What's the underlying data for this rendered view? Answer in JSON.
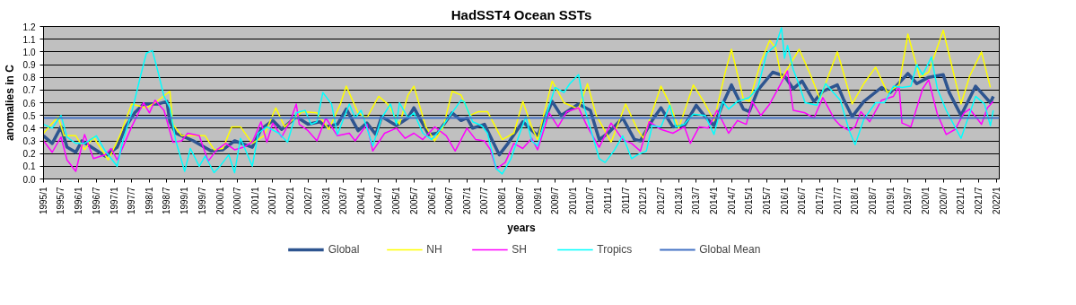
{
  "chart_data": {
    "type": "line",
    "title": "HadSST4 Ocean SSTs",
    "xlabel": "years",
    "ylabel": "anomalies in C",
    "xlim": [
      "1995-01",
      "2022-02"
    ],
    "ylim": [
      0,
      1.2
    ],
    "yticks": [
      {
        "value": 0,
        "label": "0.0"
      },
      0.1,
      0.2,
      0.3,
      0.4,
      0.5,
      0.6,
      0.7,
      0.8,
      0.9,
      {
        "value": 1,
        "label": "1.0"
      },
      1.1,
      1.2
    ],
    "xticks": [
      {
        "value": "1995-01",
        "label": "1995/1"
      },
      {
        "value": "1995-07",
        "label": "1995/7"
      },
      {
        "value": "1996-01",
        "label": "1996/1"
      },
      {
        "value": "1996-07",
        "label": "1996/7"
      },
      {
        "value": "1997-01",
        "label": "1997/1"
      },
      {
        "value": "1997-07",
        "label": "1997/7"
      },
      {
        "value": "1998-01",
        "label": "1998/1"
      },
      {
        "value": "1998-07",
        "label": "1998/7"
      },
      {
        "value": "1999-01",
        "label": "1999/1"
      },
      {
        "value": "1999-07",
        "label": "1999/7"
      },
      {
        "value": "2000-01",
        "label": "2000/1"
      },
      {
        "value": "2000-07",
        "label": "2000/7"
      },
      {
        "value": "2001-01",
        "label": "2001/1"
      },
      {
        "value": "2001-07",
        "label": "2001/7"
      },
      {
        "value": "2002-01",
        "label": "2002/1"
      },
      {
        "value": "2002-07",
        "label": "2002/7"
      },
      {
        "value": "2003-01",
        "label": "2003/1"
      },
      {
        "value": "2003-07",
        "label": "2003/7"
      },
      {
        "value": "2004-01",
        "label": "2004/1"
      },
      {
        "value": "2004-07",
        "label": "2004/7"
      },
      {
        "value": "2005-01",
        "label": "2005/1"
      },
      {
        "value": "2005-07",
        "label": "2005/7"
      },
      {
        "value": "2006-01",
        "label": "2006/1"
      },
      {
        "value": "2006-07",
        "label": "2006/7"
      },
      {
        "value": "2007-01",
        "label": "2007/1"
      },
      {
        "value": "2007-07",
        "label": "2007/7"
      },
      {
        "value": "2008-01",
        "label": "2008/1"
      },
      {
        "value": "2008-07",
        "label": "2008/7"
      },
      {
        "value": "2009-01",
        "label": "2009/1"
      },
      {
        "value": "2009-07",
        "label": "2009/7"
      },
      {
        "value": "2010-01",
        "label": "2010/1"
      },
      {
        "value": "2010-07",
        "label": "2010/7"
      },
      {
        "value": "2011-01",
        "label": "2011/1"
      },
      {
        "value": "2011-07",
        "label": "2011/7"
      },
      {
        "value": "2012-01",
        "label": "2012/1"
      },
      {
        "value": "2012-07",
        "label": "2012/7"
      },
      {
        "value": "2013-01",
        "label": "2013/1"
      },
      {
        "value": "2013-07",
        "label": "2013/7"
      },
      {
        "value": "2014-01",
        "label": "2014/1"
      },
      {
        "value": "2014-07",
        "label": "2014/7"
      },
      {
        "value": "2015-01",
        "label": "2015/1"
      },
      {
        "value": "2015-07",
        "label": "2015/7"
      },
      {
        "value": "2016-01",
        "label": "2016/1"
      },
      {
        "value": "2016-07",
        "label": "2016/7"
      },
      {
        "value": "2017-01",
        "label": "2017/1"
      },
      {
        "value": "2017-07",
        "label": "2017/7"
      },
      {
        "value": "2018-01",
        "label": "2018/1"
      },
      {
        "value": "2018-07",
        "label": "2018/7"
      },
      {
        "value": "2019-01",
        "label": "2019/1"
      },
      {
        "value": "2019-07",
        "label": "2019/7"
      },
      {
        "value": "2020-01",
        "label": "2020/1"
      },
      {
        "value": "2020-07",
        "label": "2020/7"
      },
      {
        "value": "2021-01",
        "label": "2021/1"
      },
      {
        "value": "2021-07",
        "label": "2021/7"
      },
      {
        "value": "2022-01",
        "label": "2022/1"
      }
    ],
    "grid": "y",
    "legend": "bottom",
    "series": [
      {
        "name": "Global",
        "color": "#2e5590",
        "x": [
          "1995-01",
          "1995-04",
          "1995-07",
          "1995-09",
          "1995-12",
          "1996-02",
          "1996-06",
          "1996-10",
          "1997-02",
          "1997-05",
          "1997-08",
          "1997-11",
          "1998-04",
          "1998-07",
          "1998-08",
          "1998-10",
          "1998-12",
          "1999-04",
          "1999-10",
          "2000-02",
          "2000-06",
          "2000-12",
          "2001-03",
          "2001-07",
          "2001-10",
          "2001-12",
          "2002-03",
          "2002-07",
          "2002-11",
          "2003-01",
          "2003-05",
          "2003-08",
          "2003-12",
          "2004-03",
          "2004-06",
          "2004-08",
          "2005-01",
          "2005-05",
          "2005-07",
          "2005-12",
          "2006-03",
          "2006-08",
          "2006-11",
          "2007-01",
          "2007-03",
          "2007-07",
          "2007-12",
          "2008-03",
          "2008-08",
          "2009-01",
          "2009-06",
          "2009-09",
          "2010-03",
          "2010-07",
          "2010-10",
          "2011-01",
          "2011-06",
          "2011-10",
          "2011-12",
          "2012-04",
          "2012-07",
          "2012-11",
          "2013-03",
          "2013-07",
          "2013-10",
          "2014-01",
          "2014-04",
          "2014-07",
          "2014-11",
          "2015-01",
          "2015-04",
          "2015-09",
          "2016-01",
          "2016-04",
          "2016-07",
          "2016-11",
          "2017-02",
          "2017-07",
          "2017-09",
          "2017-12",
          "2018-04",
          "2018-10",
          "2019-01",
          "2019-07",
          "2019-10",
          "2020-02",
          "2020-07",
          "2020-09",
          "2021-01",
          "2021-06",
          "2021-11",
          "2021-12"
        ],
        "values": [
          0.34,
          0.28,
          0.41,
          0.25,
          0.21,
          0.3,
          0.24,
          0.18,
          0.25,
          0.41,
          0.52,
          0.59,
          0.59,
          0.61,
          0.45,
          0.36,
          0.34,
          0.3,
          0.22,
          0.23,
          0.3,
          0.25,
          0.39,
          0.46,
          0.39,
          0.43,
          0.49,
          0.43,
          0.45,
          0.41,
          0.43,
          0.55,
          0.38,
          0.44,
          0.35,
          0.49,
          0.42,
          0.48,
          0.56,
          0.35,
          0.36,
          0.52,
          0.46,
          0.48,
          0.4,
          0.43,
          0.19,
          0.28,
          0.45,
          0.34,
          0.61,
          0.5,
          0.59,
          0.54,
          0.31,
          0.36,
          0.48,
          0.31,
          0.3,
          0.46,
          0.56,
          0.41,
          0.42,
          0.58,
          0.49,
          0.42,
          0.59,
          0.74,
          0.55,
          0.53,
          0.7,
          0.84,
          0.81,
          0.71,
          0.77,
          0.61,
          0.69,
          0.74,
          0.63,
          0.49,
          0.61,
          0.72,
          0.68,
          0.83,
          0.75,
          0.8,
          0.82,
          0.68,
          0.5,
          0.73,
          0.6,
          0.65
        ]
      },
      {
        "name": "NH",
        "color": "#ffff00",
        "x": [
          "1995-01",
          "1995-06",
          "1995-08",
          "1995-12",
          "1996-03",
          "1996-06",
          "1996-11",
          "1997-03",
          "1997-07",
          "1997-12",
          "1998-03",
          "1998-08",
          "1998-09",
          "1998-12",
          "1999-04",
          "1999-08",
          "1999-11",
          "2000-02",
          "2000-05",
          "2000-08",
          "2000-12",
          "2001-04",
          "2001-08",
          "2001-11",
          "2002-05",
          "2002-10",
          "2003-02",
          "2003-06",
          "2003-08",
          "2003-12",
          "2004-03",
          "2004-07",
          "2004-10",
          "2005-02",
          "2005-05",
          "2005-07",
          "2005-11",
          "2006-02",
          "2006-05",
          "2006-08",
          "2006-11",
          "2007-02",
          "2007-05",
          "2007-08",
          "2008-01",
          "2008-05",
          "2008-08",
          "2008-11",
          "2009-01",
          "2009-06",
          "2009-10",
          "2010-03",
          "2010-06",
          "2010-09",
          "2011-02",
          "2011-07",
          "2011-11",
          "2012-01",
          "2012-07",
          "2012-10",
          "2013-01",
          "2013-06",
          "2013-10",
          "2014-01",
          "2014-05",
          "2014-07",
          "2014-11",
          "2015-01",
          "2015-05",
          "2015-08",
          "2015-10",
          "2015-12",
          "2016-06",
          "2016-10",
          "2017-01",
          "2017-07",
          "2017-09",
          "2017-12",
          "2018-04",
          "2018-08",
          "2018-12",
          "2019-04",
          "2019-07",
          "2019-11",
          "2020-02",
          "2020-07",
          "2021-01",
          "2021-04",
          "2021-08",
          "2021-11"
        ],
        "values": [
          0.36,
          0.49,
          0.34,
          0.34,
          0.23,
          0.33,
          0.15,
          0.34,
          0.59,
          0.56,
          0.6,
          0.69,
          0.43,
          0.34,
          0.34,
          0.34,
          0.23,
          0.24,
          0.41,
          0.41,
          0.28,
          0.34,
          0.56,
          0.41,
          0.53,
          0.52,
          0.39,
          0.59,
          0.73,
          0.52,
          0.48,
          0.65,
          0.59,
          0.43,
          0.66,
          0.73,
          0.41,
          0.3,
          0.41,
          0.69,
          0.66,
          0.5,
          0.53,
          0.53,
          0.31,
          0.36,
          0.61,
          0.41,
          0.31,
          0.77,
          0.6,
          0.55,
          0.75,
          0.5,
          0.29,
          0.59,
          0.39,
          0.32,
          0.73,
          0.59,
          0.4,
          0.74,
          0.59,
          0.46,
          0.85,
          1.02,
          0.63,
          0.61,
          0.92,
          1.09,
          1.03,
          0.79,
          1.02,
          0.81,
          0.63,
          1.0,
          0.84,
          0.59,
          0.75,
          0.88,
          0.68,
          0.74,
          1.14,
          0.8,
          0.84,
          1.17,
          0.59,
          0.81,
          1.0,
          0.72
        ]
      },
      {
        "name": "SH",
        "color": "#ff00ff",
        "x": [
          "1995-01",
          "1995-04",
          "1995-07",
          "1995-09",
          "1995-12",
          "1996-03",
          "1996-06",
          "1996-10",
          "1996-12",
          "1997-02",
          "1997-04",
          "1997-07",
          "1997-11",
          "1998-01",
          "1998-03",
          "1998-06",
          "1998-09",
          "1998-12",
          "1999-02",
          "1999-06",
          "1999-09",
          "1999-12",
          "2000-03",
          "2000-06",
          "2000-09",
          "2000-12",
          "2001-03",
          "2001-05",
          "2001-07",
          "2001-10",
          "2002-01",
          "2002-03",
          "2002-04",
          "2002-07",
          "2002-10",
          "2003-01",
          "2003-05",
          "2003-09",
          "2003-11",
          "2004-03",
          "2004-05",
          "2004-09",
          "2005-01",
          "2005-04",
          "2005-07",
          "2005-10",
          "2006-02",
          "2006-06",
          "2006-09",
          "2007-01",
          "2007-04",
          "2007-07",
          "2007-09",
          "2007-11",
          "2008-02",
          "2008-05",
          "2008-08",
          "2008-11",
          "2009-01",
          "2009-05",
          "2009-08",
          "2009-11",
          "2010-03",
          "2010-06",
          "2010-10",
          "2011-02",
          "2011-06",
          "2011-09",
          "2011-12",
          "2012-03",
          "2012-07",
          "2012-11",
          "2013-03",
          "2013-05",
          "2013-08",
          "2013-11",
          "2014-02",
          "2014-06",
          "2014-09",
          "2014-12",
          "2015-02",
          "2015-05",
          "2015-08",
          "2015-12",
          "2016-02",
          "2016-04",
          "2016-08",
          "2016-11",
          "2017-02",
          "2017-06",
          "2017-08",
          "2017-11",
          "2018-01",
          "2018-03",
          "2018-06",
          "2018-10",
          "2019-02",
          "2019-04",
          "2019-05",
          "2019-08",
          "2019-12",
          "2020-02",
          "2020-05",
          "2020-08",
          "2020-11",
          "2021-02",
          "2021-04",
          "2021-08",
          "2021-10",
          "2021-12"
        ],
        "values": [
          0.3,
          0.21,
          0.33,
          0.15,
          0.06,
          0.35,
          0.16,
          0.19,
          0.24,
          0.15,
          0.25,
          0.41,
          0.6,
          0.52,
          0.62,
          0.54,
          0.29,
          0.3,
          0.36,
          0.34,
          0.14,
          0.23,
          0.28,
          0.23,
          0.25,
          0.29,
          0.45,
          0.29,
          0.44,
          0.33,
          0.46,
          0.59,
          0.43,
          0.38,
          0.3,
          0.48,
          0.34,
          0.36,
          0.3,
          0.43,
          0.22,
          0.36,
          0.4,
          0.32,
          0.36,
          0.31,
          0.41,
          0.34,
          0.22,
          0.4,
          0.31,
          0.3,
          0.23,
          0.08,
          0.13,
          0.28,
          0.24,
          0.32,
          0.23,
          0.52,
          0.41,
          0.53,
          0.56,
          0.41,
          0.25,
          0.44,
          0.31,
          0.28,
          0.22,
          0.45,
          0.39,
          0.36,
          0.41,
          0.28,
          0.41,
          0.4,
          0.54,
          0.36,
          0.46,
          0.43,
          0.61,
          0.5,
          0.59,
          0.76,
          0.85,
          0.54,
          0.52,
          0.48,
          0.64,
          0.47,
          0.42,
          0.38,
          0.41,
          0.53,
          0.45,
          0.62,
          0.65,
          0.73,
          0.44,
          0.41,
          0.71,
          0.78,
          0.51,
          0.35,
          0.39,
          0.52,
          0.55,
          0.43,
          0.56,
          0.61
        ]
      },
      {
        "name": "Tropics",
        "color": "#00ffff",
        "x": [
          "1995-01",
          "1995-04",
          "1995-07",
          "1995-09",
          "1995-12",
          "1996-03",
          "1996-07",
          "1996-10",
          "1997-02",
          "1997-04",
          "1997-07",
          "1997-10",
          "1997-12",
          "1998-02",
          "1998-04",
          "1998-06",
          "1998-08",
          "1998-10",
          "1999-01",
          "1999-03",
          "1999-06",
          "1999-08",
          "1999-11",
          "2000-01",
          "2000-04",
          "2000-06",
          "2000-08",
          "2000-12",
          "2001-02",
          "2001-05",
          "2001-09",
          "2001-12",
          "2002-03",
          "2002-06",
          "2002-08",
          "2002-10",
          "2002-12",
          "2003-03",
          "2003-05",
          "2003-09",
          "2003-11",
          "2004-01",
          "2004-05",
          "2004-08",
          "2004-11",
          "2005-01",
          "2005-02",
          "2005-05",
          "2005-07",
          "2005-10",
          "2006-01",
          "2006-04",
          "2006-07",
          "2006-11",
          "2006-12",
          "2007-03",
          "2007-06",
          "2007-08",
          "2007-11",
          "2008-01",
          "2008-04",
          "2008-07",
          "2008-09",
          "2008-11",
          "2009-01",
          "2009-04",
          "2009-07",
          "2009-10",
          "2009-12",
          "2010-03",
          "2010-05",
          "2010-07",
          "2010-10",
          "2010-12",
          "2011-03",
          "2011-06",
          "2011-09",
          "2011-11",
          "2012-02",
          "2012-04",
          "2012-07",
          "2012-10",
          "2012-12",
          "2013-03",
          "2013-06",
          "2013-10",
          "2014-01",
          "2014-04",
          "2014-06",
          "2014-09",
          "2015-01",
          "2015-04",
          "2015-07",
          "2015-10",
          "2015-12",
          "2016-01",
          "2016-02",
          "2016-04",
          "2016-06",
          "2016-08",
          "2016-12",
          "2017-03",
          "2017-06",
          "2017-08",
          "2017-11",
          "2018-01",
          "2018-04",
          "2018-08",
          "2018-11",
          "2019-02",
          "2019-05",
          "2019-08",
          "2019-10",
          "2019-12",
          "2020-03",
          "2020-05",
          "2020-08",
          "2021-01",
          "2021-06",
          "2021-09",
          "2021-11",
          "2021-12"
        ],
        "values": [
          0.43,
          0.4,
          0.5,
          0.33,
          0.28,
          0.28,
          0.34,
          0.22,
          0.1,
          0.3,
          0.52,
          0.81,
          0.99,
          1.01,
          0.84,
          0.65,
          0.56,
          0.3,
          0.06,
          0.24,
          0.1,
          0.18,
          0.05,
          0.1,
          0.19,
          0.05,
          0.32,
          0.1,
          0.36,
          0.41,
          0.36,
          0.29,
          0.52,
          0.54,
          0.43,
          0.45,
          0.68,
          0.59,
          0.35,
          0.59,
          0.48,
          0.54,
          0.26,
          0.48,
          0.59,
          0.43,
          0.6,
          0.48,
          0.52,
          0.36,
          0.31,
          0.39,
          0.49,
          0.62,
          0.61,
          0.45,
          0.42,
          0.36,
          0.08,
          0.04,
          0.16,
          0.36,
          0.49,
          0.3,
          0.26,
          0.5,
          0.72,
          0.68,
          0.75,
          0.82,
          0.56,
          0.4,
          0.16,
          0.13,
          0.22,
          0.34,
          0.16,
          0.19,
          0.22,
          0.42,
          0.41,
          0.58,
          0.41,
          0.43,
          0.51,
          0.5,
          0.35,
          0.61,
          0.55,
          0.61,
          0.64,
          0.72,
          0.99,
          1.05,
          1.19,
          0.95,
          1.05,
          0.86,
          0.74,
          0.6,
          0.58,
          0.75,
          0.67,
          0.62,
          0.38,
          0.27,
          0.47,
          0.6,
          0.6,
          0.73,
          0.72,
          0.73,
          0.9,
          0.82,
          0.96,
          0.71,
          0.54,
          0.32,
          0.65,
          0.59,
          0.42,
          0.54
        ]
      },
      {
        "name": "Global Mean",
        "color": "#4472c4",
        "x": [
          "1995-01",
          "2022-02"
        ],
        "values": [
          0.48,
          0.48
        ]
      }
    ]
  }
}
